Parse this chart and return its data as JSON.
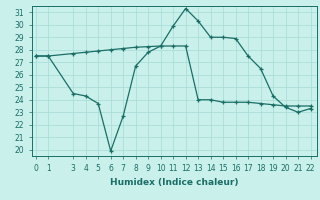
{
  "xlabel": "Humidex (Indice chaleur)",
  "bg_color": "#caf0eb",
  "grid_color": "#aaddd8",
  "line_color": "#1a6e66",
  "line1_x": [
    0,
    1,
    3,
    4,
    5,
    6,
    7,
    8,
    9,
    10,
    11,
    12,
    13,
    14,
    15,
    16,
    17,
    18,
    19,
    20,
    21,
    22
  ],
  "line1_y": [
    27.5,
    27.5,
    27.7,
    27.8,
    27.9,
    28.0,
    28.1,
    28.2,
    28.25,
    28.3,
    28.3,
    28.3,
    24.0,
    24.0,
    23.8,
    23.8,
    23.8,
    23.7,
    23.6,
    23.5,
    23.5,
    23.5
  ],
  "line2_x": [
    0,
    1,
    3,
    4,
    5,
    6,
    7,
    8,
    9,
    10,
    11,
    12,
    13,
    14,
    15,
    16,
    17,
    18,
    19,
    20,
    21,
    22
  ],
  "line2_y": [
    27.5,
    27.5,
    24.5,
    24.3,
    23.7,
    19.9,
    22.7,
    26.7,
    27.8,
    28.3,
    29.9,
    31.3,
    30.3,
    29.0,
    29.0,
    28.9,
    27.5,
    26.5,
    24.3,
    23.4,
    23.0,
    23.3
  ],
  "ylim": [
    19.5,
    31.5
  ],
  "yticks": [
    20,
    21,
    22,
    23,
    24,
    25,
    26,
    27,
    28,
    29,
    30,
    31
  ],
  "xticks": [
    0,
    1,
    3,
    4,
    5,
    6,
    7,
    8,
    9,
    10,
    11,
    12,
    13,
    14,
    15,
    16,
    17,
    18,
    19,
    20,
    21,
    22
  ],
  "xlim": [
    -0.3,
    22.5
  ],
  "tick_fontsize": 5.5,
  "xlabel_fontsize": 6.5
}
